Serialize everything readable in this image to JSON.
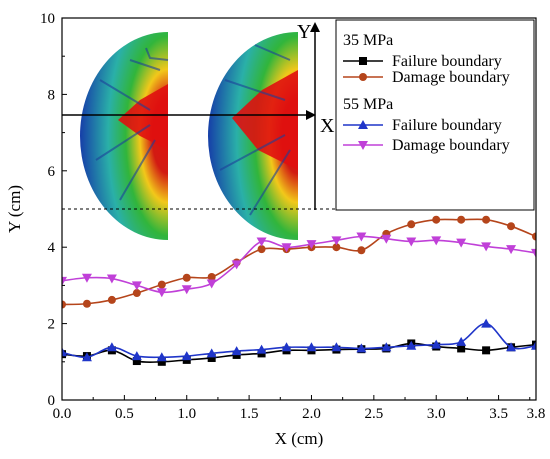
{
  "chart_data": {
    "type": "line",
    "xlabel": "X (cm)",
    "ylabel": "Y (cm)",
    "xlim": [
      0,
      3.8
    ],
    "ylim": [
      0,
      10
    ],
    "xticks": [
      "0.0",
      "0.5",
      "1.0",
      "1.5",
      "2.0",
      "2.5",
      "3.0",
      "3.5",
      "3.8"
    ],
    "yticks": [
      "0",
      "2",
      "4",
      "6",
      "8",
      "10"
    ],
    "grid": false,
    "legend_position": "top-right",
    "groups": [
      {
        "name": "35 MPa",
        "series_indices": [
          0,
          1
        ]
      },
      {
        "name": "55 MPa",
        "series_indices": [
          2,
          3
        ]
      }
    ],
    "series": [
      {
        "name": "Failure boundary",
        "group": "35 MPa",
        "color": "#000000",
        "marker": "square",
        "x": [
          0.0,
          0.2,
          0.4,
          0.6,
          0.8,
          1.0,
          1.2,
          1.4,
          1.6,
          1.8,
          2.0,
          2.2,
          2.4,
          2.6,
          2.8,
          3.0,
          3.2,
          3.4,
          3.6,
          3.8
        ],
        "y": [
          1.2,
          1.15,
          1.3,
          1.02,
          1.0,
          1.05,
          1.1,
          1.18,
          1.22,
          1.3,
          1.3,
          1.32,
          1.33,
          1.35,
          1.48,
          1.4,
          1.35,
          1.3,
          1.38,
          1.45
        ]
      },
      {
        "name": "Damage boundary",
        "group": "35 MPa",
        "color": "#b5451b",
        "marker": "circle",
        "x": [
          0.0,
          0.2,
          0.4,
          0.6,
          0.8,
          1.0,
          1.2,
          1.4,
          1.6,
          1.8,
          2.0,
          2.2,
          2.4,
          2.6,
          2.8,
          3.0,
          3.2,
          3.4,
          3.6,
          3.8
        ],
        "y": [
          2.5,
          2.52,
          2.62,
          2.8,
          3.02,
          3.2,
          3.22,
          3.6,
          3.95,
          3.95,
          4.0,
          4.0,
          3.92,
          4.35,
          4.6,
          4.72,
          4.72,
          4.72,
          4.55,
          4.28
        ]
      },
      {
        "name": "Failure boundary",
        "group": "55 MPa",
        "color": "#1f35c9",
        "marker": "triangle-up",
        "x": [
          0.0,
          0.2,
          0.4,
          0.6,
          0.8,
          1.0,
          1.2,
          1.4,
          1.6,
          1.8,
          2.0,
          2.2,
          2.4,
          2.6,
          2.8,
          3.0,
          3.2,
          3.4,
          3.6,
          3.8
        ],
        "y": [
          1.25,
          1.12,
          1.38,
          1.15,
          1.12,
          1.15,
          1.22,
          1.28,
          1.32,
          1.38,
          1.38,
          1.38,
          1.35,
          1.38,
          1.42,
          1.45,
          1.52,
          2.0,
          1.38,
          1.42
        ]
      },
      {
        "name": "Damage boundary",
        "group": "55 MPa",
        "color": "#c040d8",
        "marker": "triangle-down",
        "x": [
          0.0,
          0.2,
          0.4,
          0.6,
          0.8,
          1.0,
          1.2,
          1.4,
          1.6,
          1.8,
          2.0,
          2.2,
          2.4,
          2.6,
          2.8,
          3.0,
          3.2,
          3.4,
          3.6,
          3.8
        ],
        "y": [
          3.12,
          3.2,
          3.18,
          3.0,
          2.82,
          2.9,
          3.05,
          3.55,
          4.15,
          4.0,
          4.08,
          4.18,
          4.28,
          4.22,
          4.15,
          4.18,
          4.12,
          4.02,
          3.95,
          3.85
        ]
      }
    ],
    "annotations": [
      {
        "type": "hline",
        "y": 5.0,
        "style": "dashed"
      }
    ],
    "inset": {
      "axis_labels": [
        "Y",
        "X"
      ]
    }
  }
}
